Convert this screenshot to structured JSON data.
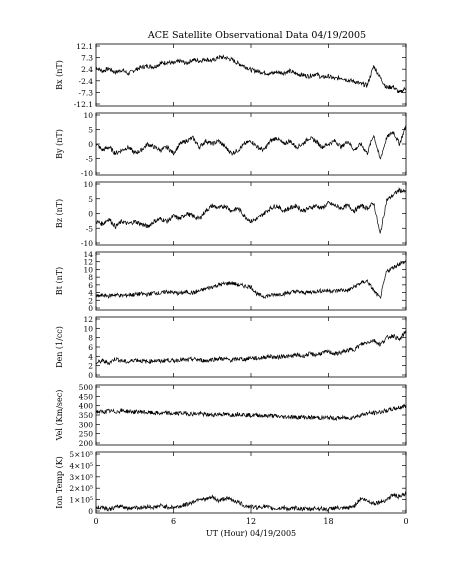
{
  "chart_data": [
    {
      "type": "line",
      "title": "ACE Satellite Observational Data   04/19/2005",
      "ylabel": "Bx (nT)",
      "yticks": [
        "12.1",
        "7.3",
        "2.4",
        "-2.4",
        "-7.3",
        "-12.1"
      ],
      "ylim": [
        -12.1,
        12.1
      ],
      "xlim": [
        0,
        24
      ],
      "series": [
        {
          "x": [
            0,
            0.5,
            1,
            1.5,
            2,
            2.5,
            3,
            3.5,
            4,
            4.5,
            5,
            5.5,
            6,
            6.5,
            7,
            7.5,
            8,
            8.5,
            9,
            9.5,
            10,
            10.5,
            11,
            11.5,
            12,
            12.5,
            13,
            13.5,
            14,
            14.5,
            15,
            15.5,
            16,
            16.5,
            17,
            17.5,
            18,
            18.5,
            19,
            19.5,
            20,
            20.5,
            21,
            21.5,
            22,
            22.5,
            23,
            23.5,
            24
          ],
          "values": [
            3,
            1.5,
            2.5,
            1,
            2,
            0.5,
            2,
            3,
            3.5,
            3.2,
            4.5,
            5,
            4.5,
            5.5,
            4.5,
            6,
            5.5,
            6.2,
            5.5,
            7,
            6.8,
            6,
            4.5,
            3.5,
            2,
            1.5,
            1,
            0.5,
            1.2,
            0.8,
            1.5,
            0.5,
            0,
            -0.5,
            0.5,
            -1,
            -0.5,
            -1.5,
            -1,
            -2,
            -2.5,
            -3.5,
            -4,
            3.5,
            -1,
            -5,
            -4.5,
            -7,
            -5
          ]
        }
      ]
    },
    {
      "type": "line",
      "ylabel": "By (nT)",
      "yticks": [
        "10",
        "5",
        "0",
        "-5",
        "-10"
      ],
      "ylim": [
        -10,
        10
      ],
      "xlim": [
        0,
        24
      ],
      "series": [
        {
          "x": [
            0,
            0.5,
            1,
            1.5,
            2,
            2.5,
            3,
            3.5,
            4,
            4.5,
            5,
            5.5,
            6,
            6.5,
            7,
            7.5,
            8,
            8.5,
            9,
            9.5,
            10,
            10.5,
            11,
            11.5,
            12,
            12.5,
            13,
            13.5,
            14,
            14.5,
            15,
            15.5,
            16,
            16.5,
            17,
            17.5,
            18,
            18.5,
            19,
            19.5,
            20,
            20.5,
            21,
            21.5,
            22,
            22.5,
            23,
            23.5,
            24
          ],
          "values": [
            0,
            -2,
            -1,
            -3,
            -2,
            -1,
            -3,
            -2,
            0,
            -1,
            -2,
            -1,
            -3,
            0,
            1,
            2,
            -1,
            1,
            0,
            1,
            -1,
            -3,
            -2,
            0,
            1,
            -1,
            -2,
            1,
            2,
            0,
            1,
            -1,
            0,
            2,
            1,
            -1,
            0,
            1,
            -1,
            1,
            -2,
            0,
            -3,
            3,
            -5,
            2,
            4,
            0,
            6
          ]
        }
      ]
    },
    {
      "type": "line",
      "ylabel": "Bz (nT)",
      "yticks": [
        "10",
        "5",
        "0",
        "-5",
        "-10"
      ],
      "ylim": [
        -12,
        12
      ],
      "xlim": [
        0,
        24
      ],
      "series": [
        {
          "x": [
            0,
            0.5,
            1,
            1.5,
            2,
            2.5,
            3,
            3.5,
            4,
            4.5,
            5,
            5.5,
            6,
            6.5,
            7,
            7.5,
            8,
            8.5,
            9,
            9.5,
            10,
            10.5,
            11,
            11.5,
            12,
            12.5,
            13,
            13.5,
            14,
            14.5,
            15,
            15.5,
            16,
            16.5,
            17,
            17.5,
            18,
            18.5,
            19,
            19.5,
            20,
            20.5,
            21,
            21.5,
            22,
            22.5,
            23,
            23.5,
            24
          ],
          "values": [
            -3,
            -4,
            -2,
            -5,
            -3,
            -4,
            -3,
            -4,
            -5,
            -3,
            -2,
            -3,
            -1,
            -2,
            0,
            -1,
            -2,
            1,
            3,
            2,
            3,
            1,
            2,
            -1,
            -3,
            -2,
            0,
            2,
            3,
            1,
            2,
            3,
            1,
            2,
            3,
            2,
            4,
            3,
            2,
            3,
            1,
            3,
            2,
            4,
            -8,
            5,
            7,
            9,
            8
          ]
        }
      ]
    },
    {
      "type": "line",
      "ylabel": "Bt (nT)",
      "yticks": [
        "14",
        "12",
        "10",
        "8",
        "6",
        "4",
        "2",
        "0"
      ],
      "ylim": [
        0,
        15
      ],
      "xlim": [
        0,
        24
      ],
      "series": [
        {
          "x": [
            0,
            0.5,
            1,
            1.5,
            2,
            2.5,
            3,
            3.5,
            4,
            4.5,
            5,
            5.5,
            6,
            6.5,
            7,
            7.5,
            8,
            8.5,
            9,
            9.5,
            10,
            10.5,
            11,
            11.5,
            12,
            12.5,
            13,
            13.5,
            14,
            14.5,
            15,
            15.5,
            16,
            16.5,
            17,
            17.5,
            18,
            18.5,
            19,
            19.5,
            20,
            20.5,
            21,
            21.5,
            22,
            22.5,
            23,
            23.5,
            24
          ],
          "values": [
            3.5,
            3.8,
            3.6,
            4,
            3.7,
            3.9,
            4,
            4.2,
            4,
            4.5,
            4.3,
            4.8,
            4.5,
            4.3,
            4.7,
            4.4,
            4.9,
            5.5,
            6,
            6.5,
            6.8,
            7,
            6.5,
            6.2,
            6,
            4,
            3.5,
            3.8,
            4,
            4.2,
            4.5,
            4.8,
            4.5,
            4.6,
            4.8,
            5,
            5,
            4.9,
            5.2,
            5,
            6,
            7,
            7.5,
            5,
            3,
            10,
            11,
            12,
            12.5
          ]
        }
      ]
    },
    {
      "type": "line",
      "ylabel": "Den (1/cc)",
      "yticks": [
        "12",
        "10",
        "8",
        "6",
        "4",
        "2",
        "0"
      ],
      "ylim": [
        0,
        13
      ],
      "xlim": [
        0,
        24
      ],
      "series": [
        {
          "x": [
            0,
            0.5,
            1,
            1.5,
            2,
            2.5,
            3,
            3.5,
            4,
            4.5,
            5,
            5.5,
            6,
            6.5,
            7,
            7.5,
            8,
            8.5,
            9,
            9.5,
            10,
            10.5,
            11,
            11.5,
            12,
            12.5,
            13,
            13.5,
            14,
            14.5,
            15,
            15.5,
            16,
            16.5,
            17,
            17.5,
            18,
            18.5,
            19,
            19.5,
            20,
            20.5,
            21,
            21.5,
            22,
            22.5,
            23,
            23.5,
            24
          ],
          "values": [
            3,
            3.5,
            3,
            4,
            3.5,
            3.2,
            3.8,
            3.5,
            3.3,
            3.6,
            3.4,
            3.7,
            3.5,
            3.8,
            3.6,
            3.9,
            3.7,
            3.5,
            3.8,
            4,
            3.9,
            3.6,
            4,
            3.8,
            4.2,
            4,
            4.3,
            4.5,
            4.2,
            4.6,
            4.4,
            4.8,
            4.5,
            5,
            4.8,
            5.2,
            5.5,
            5,
            5.3,
            5.8,
            6,
            7,
            7.5,
            8,
            7,
            8.5,
            9,
            8,
            10
          ]
        }
      ]
    },
    {
      "type": "line",
      "ylabel": "Vel (Km/sec)",
      "yticks": [
        "500",
        "450",
        "400",
        "350",
        "300",
        "250",
        "200"
      ],
      "ylim": [
        200,
        500
      ],
      "xlim": [
        0,
        24
      ],
      "series": [
        {
          "x": [
            0,
            0.5,
            1,
            1.5,
            2,
            2.5,
            3,
            3.5,
            4,
            4.5,
            5,
            5.5,
            6,
            6.5,
            7,
            7.5,
            8,
            8.5,
            9,
            9.5,
            10,
            10.5,
            11,
            11.5,
            12,
            12.5,
            13,
            13.5,
            14,
            14.5,
            15,
            15.5,
            16,
            16.5,
            17,
            17.5,
            18,
            18.5,
            19,
            19.5,
            20,
            20.5,
            21,
            21.5,
            22,
            22.5,
            23,
            23.5,
            24
          ],
          "values": [
            368,
            365,
            370,
            366,
            372,
            368,
            365,
            367,
            362,
            360,
            358,
            360,
            356,
            360,
            358,
            355,
            357,
            352,
            350,
            355,
            353,
            350,
            356,
            352,
            348,
            350,
            345,
            348,
            343,
            340,
            342,
            338,
            340,
            336,
            338,
            335,
            337,
            333,
            336,
            334,
            340,
            350,
            358,
            360,
            365,
            372,
            380,
            388,
            395
          ]
        }
      ]
    },
    {
      "type": "line",
      "ylabel": "Ion Temp (K)",
      "yticks": [
        "5×10⁵",
        "4×10⁵",
        "3×10⁵",
        "2×10⁵",
        "1×10⁵",
        "0"
      ],
      "ylim": [
        0,
        500000
      ],
      "xlim": [
        0,
        24
      ],
      "series": [
        {
          "x": [
            0,
            0.5,
            1,
            1.5,
            2,
            2.5,
            3,
            3.5,
            4,
            4.5,
            5,
            5.5,
            6,
            6.5,
            7,
            7.5,
            8,
            8.5,
            9,
            9.5,
            10,
            10.5,
            11,
            11.5,
            12,
            12.5,
            13,
            13.5,
            14,
            14.5,
            15,
            15.5,
            16,
            16.5,
            17,
            17.5,
            18,
            18.5,
            19,
            19.5,
            20,
            20.5,
            21,
            21.5,
            22,
            22.5,
            23,
            23.5,
            24
          ],
          "values": [
            40000,
            50000,
            30000,
            45000,
            60000,
            35000,
            50000,
            40000,
            55000,
            45000,
            60000,
            50000,
            45000,
            55000,
            70000,
            90000,
            120000,
            110000,
            130000,
            100000,
            120000,
            110000,
            90000,
            60000,
            50000,
            45000,
            55000,
            40000,
            35000,
            45000,
            30000,
            40000,
            35000,
            30000,
            40000,
            35000,
            30000,
            45000,
            35000,
            40000,
            60000,
            120000,
            100000,
            80000,
            90000,
            110000,
            150000,
            130000,
            160000
          ]
        }
      ]
    }
  ],
  "xaxis": {
    "ticks": [
      "0",
      "6",
      "12",
      "18",
      "0"
    ],
    "label": "UT (Hour)   04/19/2005"
  }
}
